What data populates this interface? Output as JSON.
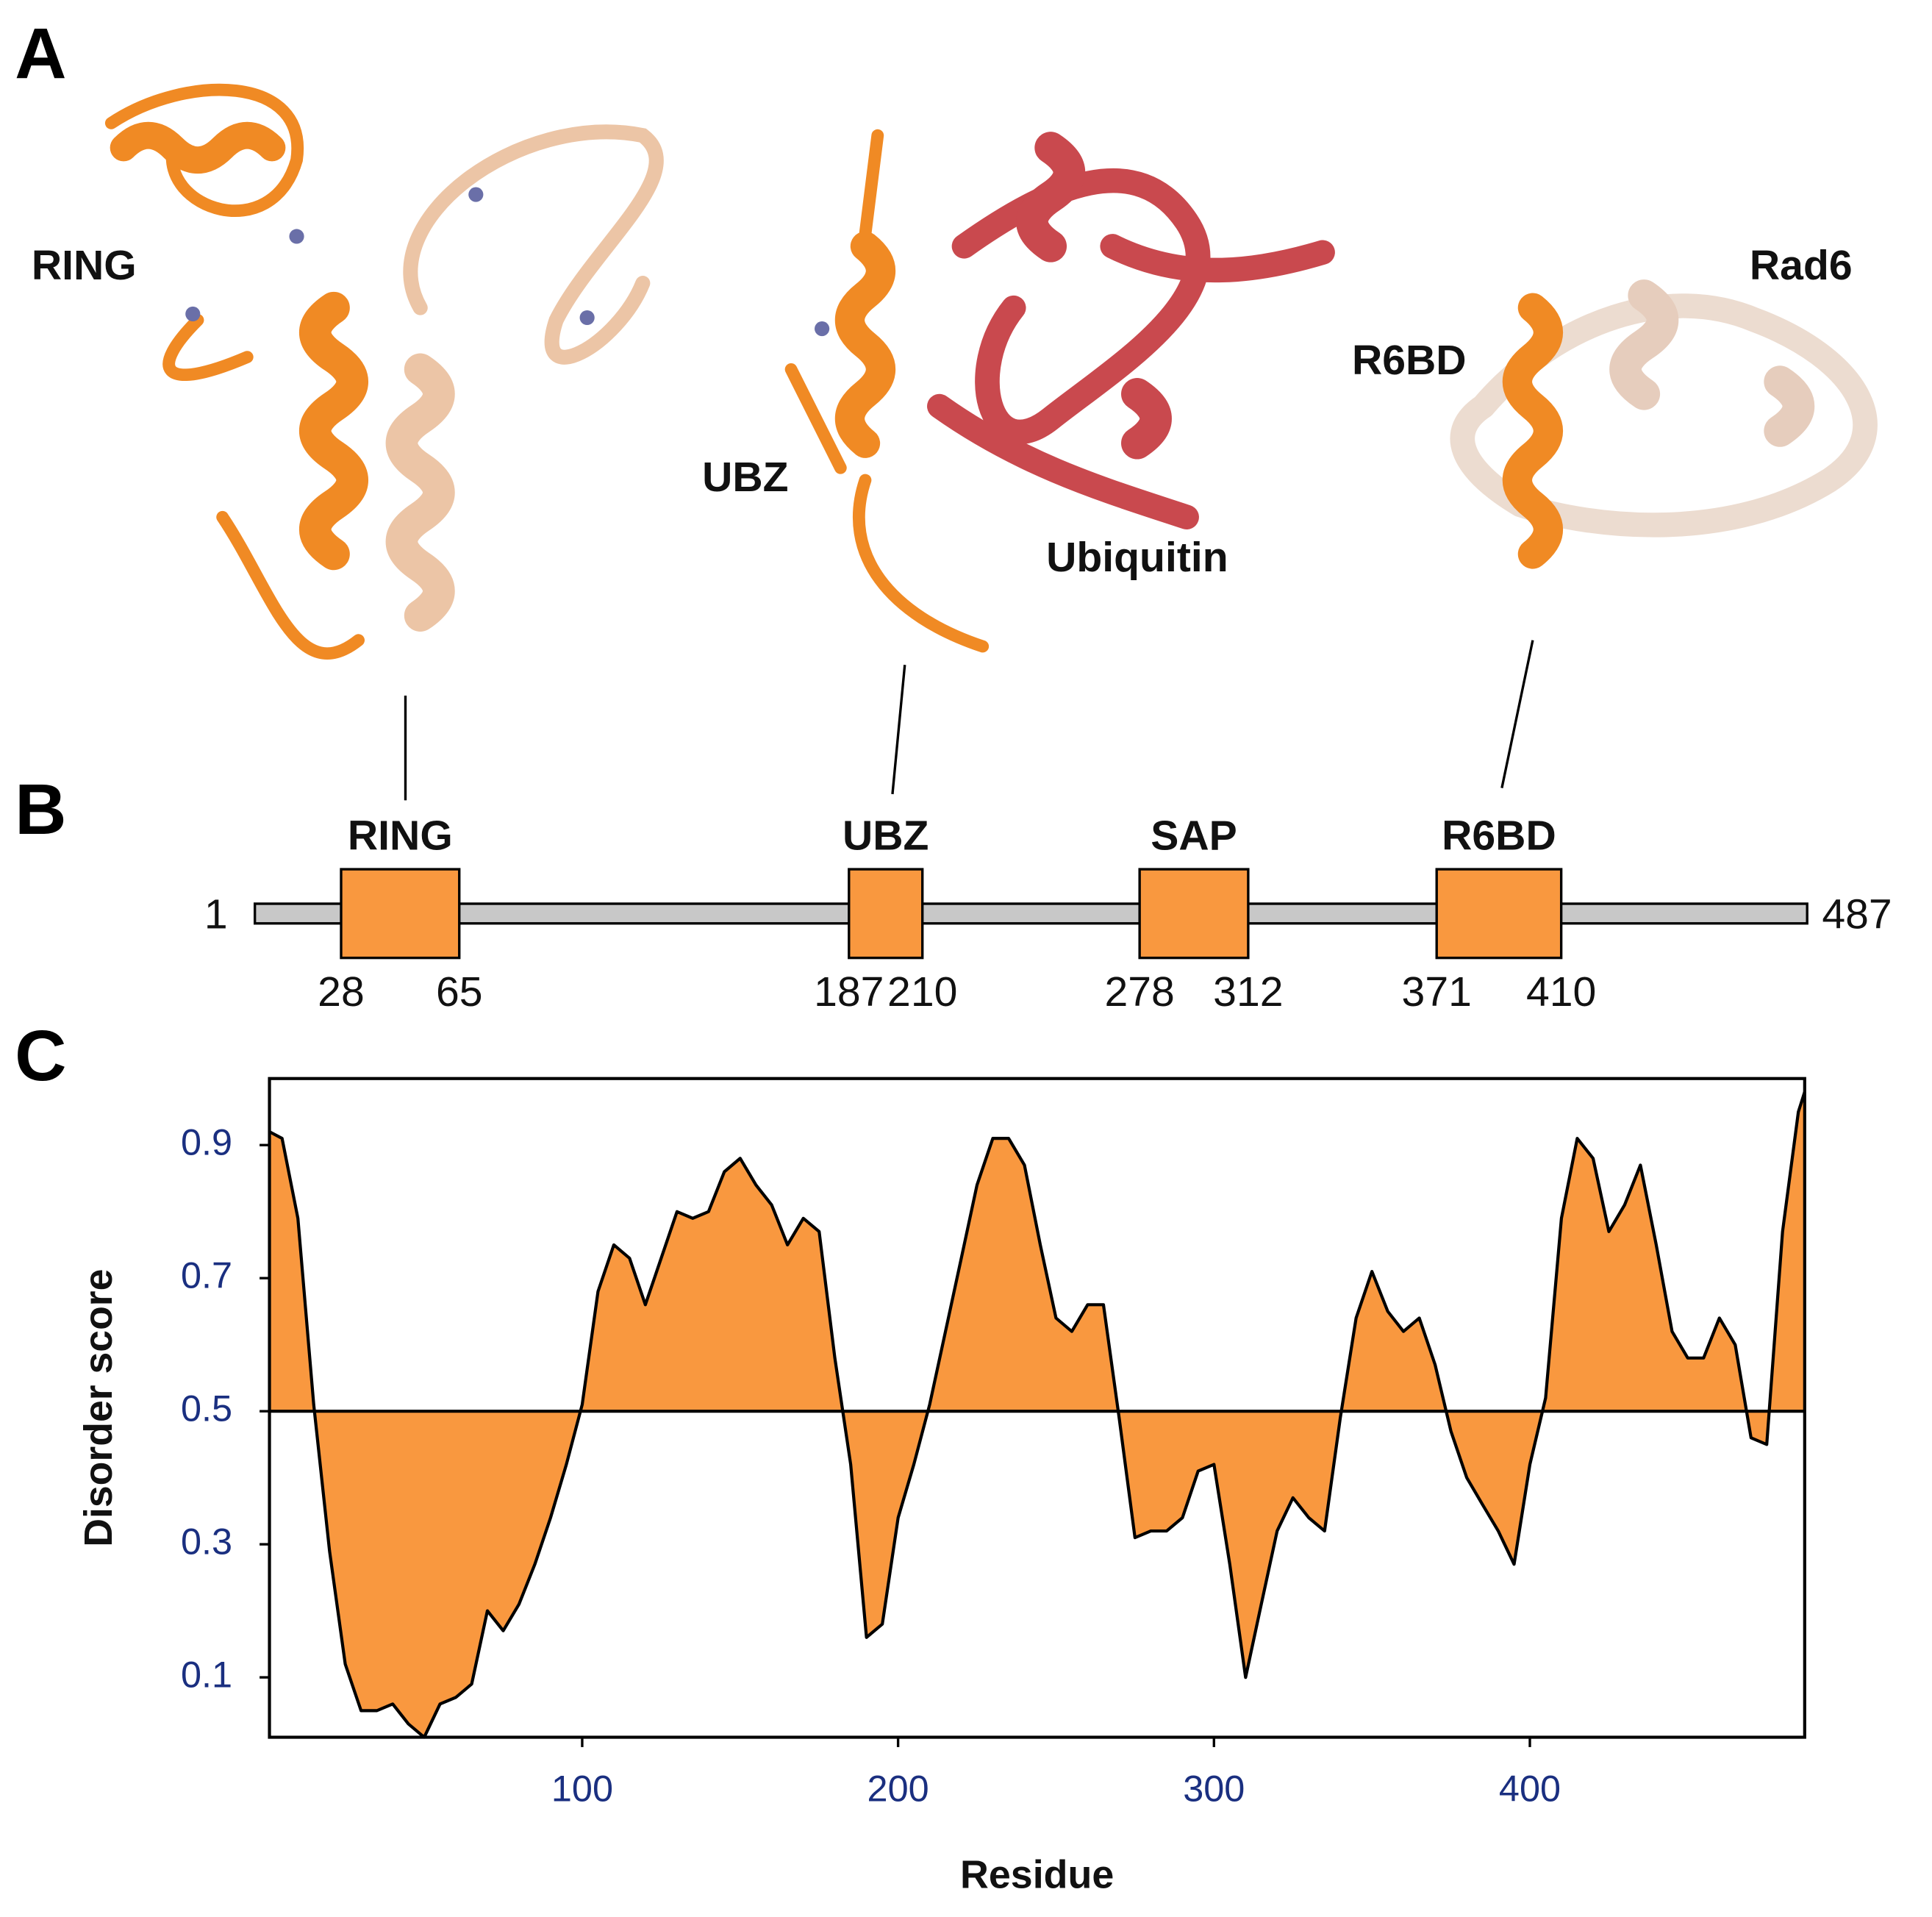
{
  "panel_labels": [
    "A",
    "B",
    "C"
  ],
  "structures": {
    "labels": [
      "RING",
      "UBZ",
      "Ubiquitin",
      "R6BD",
      "Rad6"
    ]
  },
  "domain_map": {
    "start": 1,
    "end": 487,
    "domains": [
      {
        "name": "RING",
        "start": 28,
        "end": 65
      },
      {
        "name": "UBZ",
        "start": 187,
        "end": 210
      },
      {
        "name": "SAP",
        "start": 278,
        "end": 312
      },
      {
        "name": "R6BD",
        "start": 371,
        "end": 410
      }
    ]
  },
  "chart_data": {
    "type": "area",
    "xlabel": "Residue",
    "ylabel": "Disorder score",
    "color": "#f9983f",
    "threshold": 0.5,
    "xlim": [
      1,
      487
    ],
    "ylim": [
      0.01,
      1.0
    ],
    "xticks": [
      100,
      200,
      300,
      400
    ],
    "yticks": [
      0.1,
      0.3,
      0.5,
      0.7,
      0.9
    ],
    "x": [
      1,
      5,
      10,
      15,
      20,
      25,
      30,
      35,
      40,
      45,
      50,
      55,
      60,
      65,
      70,
      75,
      80,
      85,
      90,
      95,
      100,
      105,
      110,
      115,
      120,
      125,
      130,
      135,
      140,
      145,
      150,
      155,
      160,
      165,
      170,
      175,
      180,
      185,
      190,
      195,
      200,
      205,
      210,
      215,
      220,
      225,
      230,
      235,
      240,
      245,
      250,
      255,
      260,
      265,
      270,
      275,
      280,
      285,
      290,
      295,
      300,
      305,
      310,
      315,
      320,
      325,
      330,
      335,
      340,
      345,
      350,
      355,
      360,
      365,
      370,
      375,
      380,
      385,
      390,
      395,
      400,
      405,
      410,
      415,
      420,
      425,
      430,
      435,
      440,
      445,
      450,
      455,
      460,
      465,
      470,
      475,
      480,
      485,
      487
    ],
    "values": [
      0.92,
      0.91,
      0.79,
      0.51,
      0.29,
      0.12,
      0.05,
      0.05,
      0.06,
      0.03,
      0.01,
      0.06,
      0.07,
      0.09,
      0.2,
      0.17,
      0.21,
      0.27,
      0.34,
      0.42,
      0.51,
      0.68,
      0.75,
      0.73,
      0.66,
      0.73,
      0.8,
      0.79,
      0.8,
      0.86,
      0.88,
      0.84,
      0.81,
      0.75,
      0.79,
      0.77,
      0.58,
      0.42,
      0.16,
      0.18,
      0.34,
      0.42,
      0.51,
      0.62,
      0.73,
      0.84,
      0.91,
      0.91,
      0.87,
      0.75,
      0.64,
      0.62,
      0.66,
      0.66,
      0.49,
      0.31,
      0.32,
      0.32,
      0.34,
      0.41,
      0.42,
      0.27,
      0.1,
      0.21,
      0.32,
      0.37,
      0.34,
      0.32,
      0.49,
      0.64,
      0.71,
      0.65,
      0.62,
      0.64,
      0.57,
      0.47,
      0.4,
      0.36,
      0.32,
      0.27,
      0.42,
      0.52,
      0.79,
      0.91,
      0.88,
      0.77,
      0.81,
      0.87,
      0.75,
      0.62,
      0.58,
      0.58,
      0.64,
      0.6,
      0.46,
      0.45,
      0.77,
      0.95,
      0.98
    ]
  }
}
